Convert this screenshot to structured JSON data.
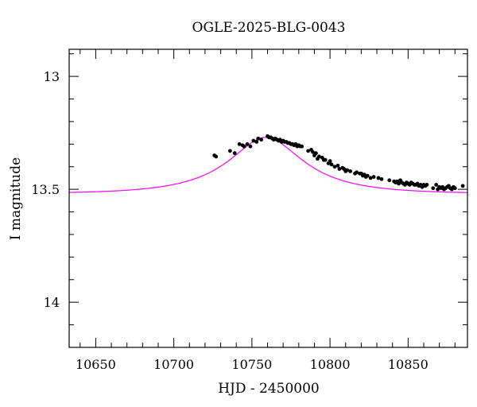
{
  "chart_data": {
    "type": "scatter",
    "title": "OGLE-2025-BLG-0043",
    "xlabel": "HJD - 2450000",
    "ylabel": "I magnitude",
    "xlim": [
      10633,
      10888
    ],
    "ylim": [
      14.2,
      12.88
    ],
    "y_inverted": true,
    "grid": false,
    "x_major_ticks": [
      10650,
      10700,
      10750,
      10800,
      10850
    ],
    "x_tick_labels": [
      "10650",
      "10700",
      "10750",
      "10800",
      "10850"
    ],
    "x_minor_step": 10,
    "y_major_ticks": [
      13,
      13.5,
      14
    ],
    "y_tick_labels": [
      "13",
      "13.5",
      "14"
    ],
    "y_minor_step": 0.1,
    "colors": {
      "points": "#000000",
      "model": "#ff00ff",
      "axes": "#000000"
    },
    "series": [
      {
        "kind": "points",
        "x": [
          10726,
          10727,
          10736,
          10739,
          10742,
          10744,
          10745,
          10747,
          10749,
          10751,
          10753,
          10754,
          10756,
          10760,
          10761,
          10762,
          10763,
          10764,
          10765,
          10766,
          10767,
          10768,
          10769,
          10770,
          10771,
          10772,
          10773,
          10774,
          10775,
          10776,
          10777,
          10778,
          10779,
          10780,
          10781,
          10782,
          10786,
          10788,
          10789,
          10790,
          10791,
          10792,
          10793,
          10795,
          10796,
          10797,
          10799,
          10800,
          10801,
          10803,
          10805,
          10806,
          10808,
          10809,
          10810,
          10811,
          10813,
          10816,
          10817,
          10819,
          10820,
          10821,
          10822,
          10823,
          10824,
          10826,
          10828,
          10831,
          10833,
          10838,
          10841,
          10842,
          10843,
          10844,
          10845,
          10846,
          10847,
          10848,
          10849,
          10850,
          10851,
          10852,
          10853,
          10854,
          10855,
          10856,
          10857,
          10858,
          10859,
          10860,
          10861,
          10862,
          10866,
          10868,
          10869,
          10870,
          10871,
          10872,
          10873,
          10874,
          10875,
          10876,
          10877,
          10878,
          10879,
          10880,
          10885
        ],
        "y": [
          13.35,
          13.355,
          13.33,
          13.34,
          13.3,
          13.305,
          13.31,
          13.3,
          13.31,
          13.285,
          13.29,
          13.275,
          13.28,
          13.265,
          13.27,
          13.27,
          13.275,
          13.28,
          13.275,
          13.28,
          13.285,
          13.28,
          13.29,
          13.285,
          13.29,
          13.29,
          13.295,
          13.295,
          13.3,
          13.3,
          13.305,
          13.3,
          13.31,
          13.305,
          13.31,
          13.31,
          13.33,
          13.325,
          13.335,
          13.35,
          13.34,
          13.365,
          13.355,
          13.36,
          13.37,
          13.37,
          13.385,
          13.375,
          13.39,
          13.4,
          13.395,
          13.41,
          13.405,
          13.41,
          13.42,
          13.415,
          13.42,
          13.43,
          13.425,
          13.43,
          13.43,
          13.44,
          13.435,
          13.445,
          13.44,
          13.45,
          13.445,
          13.45,
          13.455,
          13.46,
          13.465,
          13.47,
          13.465,
          13.475,
          13.46,
          13.47,
          13.475,
          13.48,
          13.47,
          13.475,
          13.48,
          13.47,
          13.475,
          13.48,
          13.48,
          13.475,
          13.485,
          13.48,
          13.49,
          13.48,
          13.485,
          13.48,
          13.495,
          13.48,
          13.5,
          13.49,
          13.495,
          13.49,
          13.5,
          13.495,
          13.49,
          13.485,
          13.495,
          13.5,
          13.49,
          13.495,
          13.485
        ]
      },
      {
        "kind": "model",
        "t0": 10759,
        "tE": 50,
        "u0": 0.5,
        "baseline": 13.52,
        "peak": 13.27
      }
    ]
  }
}
